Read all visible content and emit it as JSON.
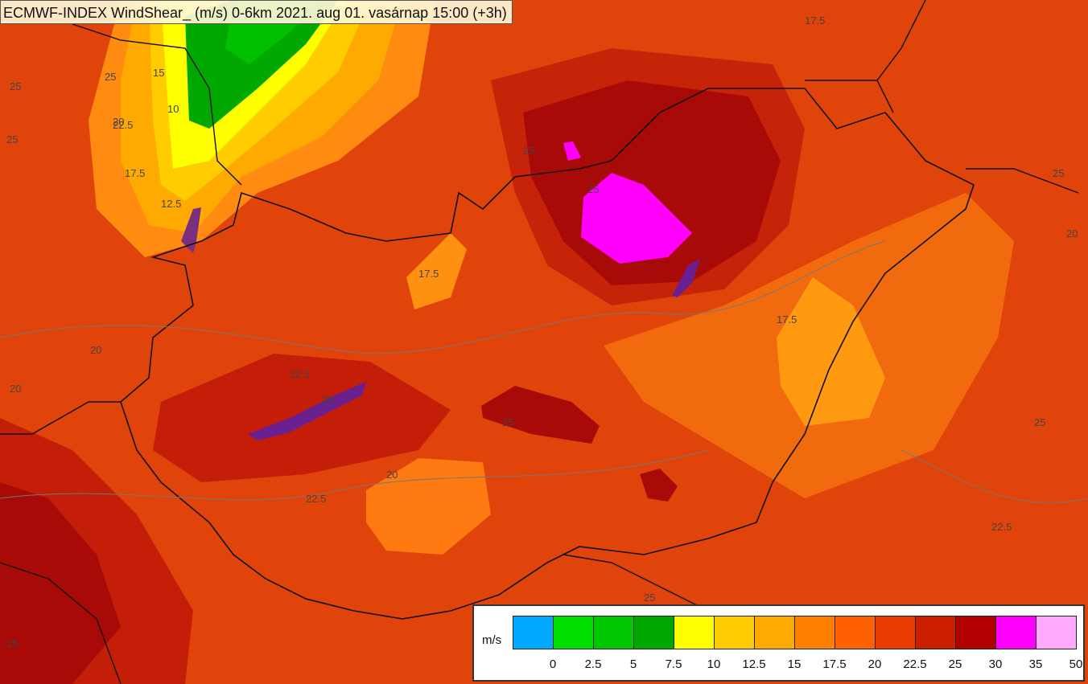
{
  "title": "ECMWF-INDEX WindShear_ (m/s) 0-6km 2021. aug 01. vasárnap 15:00 (+3h)",
  "legend": {
    "unit": "m/s",
    "bins": [
      {
        "color": "#00aaff"
      },
      {
        "color": "#00e000"
      },
      {
        "color": "#00c800"
      },
      {
        "color": "#00a800"
      },
      {
        "color": "#ffff00"
      },
      {
        "color": "#ffcc00"
      },
      {
        "color": "#ffaa00"
      },
      {
        "color": "#ff8000"
      },
      {
        "color": "#ff6000"
      },
      {
        "color": "#e83c00"
      },
      {
        "color": "#cc1f00"
      },
      {
        "color": "#b30000"
      },
      {
        "color": "#ff00ff"
      },
      {
        "color": "#ffaaff"
      }
    ],
    "ticks": [
      "0",
      "2.5",
      "5",
      "7.5",
      "10",
      "12.5",
      "15",
      "17.5",
      "20",
      "22.5",
      "25",
      "30",
      "35",
      "50"
    ]
  },
  "contour_labels": [
    "25",
    "25",
    "22.5",
    "25",
    "20",
    "15",
    "10",
    "17.5",
    "12.5",
    "25",
    "17.5",
    "25",
    "17.5",
    "20",
    "20",
    "22.5",
    "20",
    "20",
    "25",
    "22.5",
    "25",
    "22.5",
    "25",
    "25",
    "20",
    "25",
    "17.5"
  ]
}
